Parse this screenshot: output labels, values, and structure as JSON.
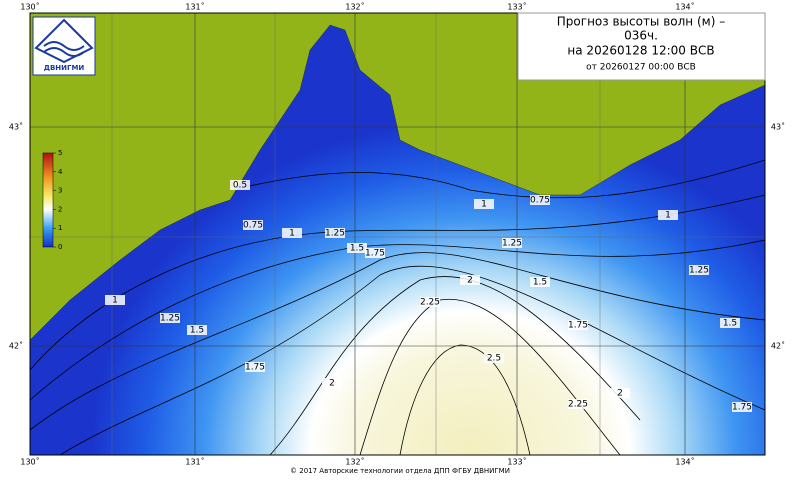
{
  "title": {
    "line1": "Прогноз высоты волн (м) –",
    "line2": "036ч.",
    "line3": "на 20260128 12:00 ВСВ",
    "line4": "от 20260127 00:00 ВСВ"
  },
  "logo": "ДВНИГМИ",
  "lon_labels": [
    "130˚",
    "131˚",
    "132˚",
    "133˚",
    "134˚"
  ],
  "lat_labels": [
    "43˚",
    "42˚"
  ],
  "colorbar": {
    "ticks": [
      0,
      1,
      2,
      3,
      4,
      5
    ]
  },
  "contour_labels": [
    0.5,
    0.75,
    1,
    1.25,
    1.5,
    1.75,
    2,
    2.25,
    2.5,
    2.25,
    2,
    1.75,
    1.5,
    1.75,
    1.5,
    1.25,
    1,
    0.75,
    1,
    1.25,
    1,
    1.25,
    1.5,
    1.75,
    2
  ],
  "footer": "© 2017 Авторские технологии отдела ДПП ФГБУ ДВНИГМИ"
}
